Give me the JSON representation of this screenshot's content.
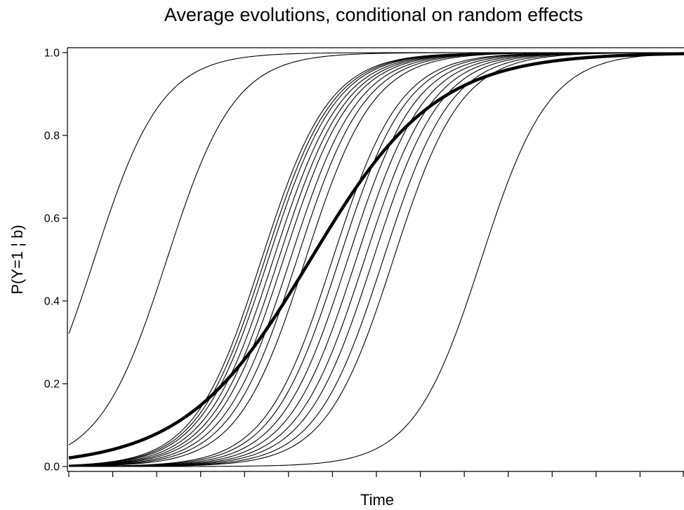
{
  "chart_data": {
    "type": "line",
    "title": "Average evolutions, conditional on random effects",
    "xlabel": "Time",
    "ylabel": "P(Y=1 ¦ b)",
    "x_ticks_labeled": false,
    "x_tick_count": 15,
    "xlim": [
      0,
      14
    ],
    "ylim": [
      0,
      1
    ],
    "y_ticks": [
      0.0,
      0.2,
      0.4,
      0.6,
      0.8,
      1.0
    ],
    "y_tick_labels": [
      "0.0",
      "0.2",
      "0.4",
      "0.6",
      "0.8",
      "1.0"
    ],
    "grid": false,
    "legend": "none",
    "model": "logistic",
    "series": [
      {
        "role": "subject",
        "intercept": -0.75,
        "slope": 1.3
      },
      {
        "role": "subject",
        "intercept": -2.9,
        "slope": 1.3
      },
      {
        "role": "subject",
        "intercept": -5.7,
        "slope": 1.3
      },
      {
        "role": "subject",
        "intercept": -5.8,
        "slope": 1.3
      },
      {
        "role": "subject",
        "intercept": -5.9,
        "slope": 1.3
      },
      {
        "role": "subject",
        "intercept": -6.05,
        "slope": 1.3
      },
      {
        "role": "subject",
        "intercept": -6.2,
        "slope": 1.3
      },
      {
        "role": "subject",
        "intercept": -6.35,
        "slope": 1.3
      },
      {
        "role": "subject",
        "intercept": -6.55,
        "slope": 1.3
      },
      {
        "role": "subject",
        "intercept": -6.75,
        "slope": 1.3
      },
      {
        "role": "subject",
        "intercept": -7.0,
        "slope": 1.3
      },
      {
        "role": "subject",
        "intercept": -7.8,
        "slope": 1.3
      },
      {
        "role": "subject",
        "intercept": -8.0,
        "slope": 1.3
      },
      {
        "role": "subject",
        "intercept": -8.25,
        "slope": 1.3
      },
      {
        "role": "subject",
        "intercept": -8.5,
        "slope": 1.3
      },
      {
        "role": "subject",
        "intercept": -8.75,
        "slope": 1.3
      },
      {
        "role": "subject",
        "intercept": -9.0,
        "slope": 1.3
      },
      {
        "role": "subject",
        "intercept": -9.3,
        "slope": 1.3
      },
      {
        "role": "subject",
        "intercept": -9.6,
        "slope": 1.3
      },
      {
        "role": "subject",
        "intercept": -12.2,
        "slope": 1.3
      },
      {
        "role": "average",
        "intercept": -3.85,
        "slope": 0.7
      }
    ]
  }
}
